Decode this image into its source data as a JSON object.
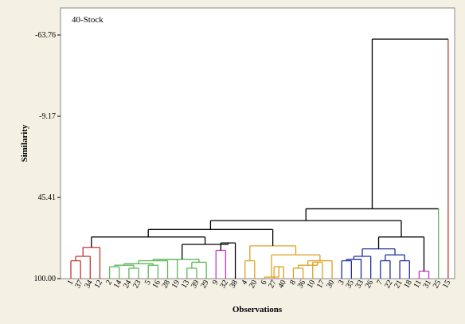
{
  "chart_data": {
    "type": "dendrogram",
    "title": "40-Stock",
    "xlabel": "Observations",
    "ylabel": "Similarity",
    "ylim": [
      100.0,
      -63.76
    ],
    "yticks": [
      "-63.76",
      "-9.17",
      "45.41",
      "100.00"
    ],
    "ytick_values": [
      -63.76,
      -9.17,
      45.41,
      100.0
    ],
    "leaf_order": [
      "1",
      "37",
      "34",
      "12",
      "2",
      "14",
      "24",
      "23",
      "5",
      "16",
      "28",
      "19",
      "13",
      "39",
      "29",
      "9",
      "32",
      "38",
      "4",
      "20",
      "6",
      "27",
      "40",
      "8",
      "36",
      "10",
      "17",
      "30",
      "3",
      "35",
      "33",
      "26",
      "7",
      "22",
      "21",
      "18",
      "11",
      "31",
      "25",
      "15"
    ],
    "leaf_colors": [
      "#c0392b",
      "#c0392b",
      "#c0392b",
      "#c0392b",
      "#5cb85c",
      "#5cb85c",
      "#5cb85c",
      "#5cb85c",
      "#5cb85c",
      "#5cb85c",
      "#5cb85c",
      "#5cb85c",
      "#5cb85c",
      "#5cb85c",
      "#5cb85c",
      "#cc33cc",
      "#cc33cc",
      "#000000",
      "#e0a020",
      "#e0a020",
      "#e0a020",
      "#e0a020",
      "#e0a020",
      "#e0a020",
      "#e0a020",
      "#e0a020",
      "#e0a020",
      "#e0a020",
      "#1f2ea0",
      "#1f2ea0",
      "#1f2ea0",
      "#1f2ea0",
      "#1f2ea0",
      "#1f2ea0",
      "#1f2ea0",
      "#1f2ea0",
      "#cc33cc",
      "#cc33cc",
      "#5cb85c",
      "#c0392b"
    ],
    "merges": [
      {
        "a": 0,
        "b": 1,
        "s": 88,
        "c": "#c0392b"
      },
      {
        "a": -1,
        "b": 2,
        "s": 85,
        "c": "#c0392b"
      },
      {
        "a": -2,
        "b": 3,
        "s": 79,
        "c": "#c0392b"
      },
      {
        "a": 4,
        "b": 5,
        "s": 92,
        "c": "#5cb85c"
      },
      {
        "a": 6,
        "b": 7,
        "s": 93,
        "c": "#5cb85c"
      },
      {
        "a": -4,
        "b": -5,
        "s": 91,
        "c": "#5cb85c"
      },
      {
        "a": 8,
        "b": 9,
        "s": 91,
        "c": "#5cb85c"
      },
      {
        "a": -6,
        "b": -7,
        "s": 90,
        "c": "#5cb85c"
      },
      {
        "a": -8,
        "b": 10,
        "s": 88,
        "c": "#5cb85c"
      },
      {
        "a": -9,
        "b": 11,
        "s": 87,
        "c": "#5cb85c"
      },
      {
        "a": 12,
        "b": 13,
        "s": 93,
        "c": "#5cb85c"
      },
      {
        "a": -11,
        "b": 14,
        "s": 89,
        "c": "#5cb85c"
      },
      {
        "a": -10,
        "b": -12,
        "s": 87,
        "c": "#5cb85c"
      },
      {
        "a": 15,
        "b": 16,
        "s": 81,
        "c": "#cc33cc"
      },
      {
        "a": -14,
        "b": 17,
        "s": 76,
        "c": "#000000"
      },
      {
        "a": 18,
        "b": 19,
        "s": 88,
        "c": "#e0a020"
      },
      {
        "a": 21,
        "b": 22,
        "s": 92,
        "c": "#e0a020"
      },
      {
        "a": 20,
        "b": -17,
        "s": 99,
        "c": "#e0a020"
      },
      {
        "a": 23,
        "b": 24,
        "s": 93,
        "c": "#e0a020"
      },
      {
        "a": 25,
        "b": 26,
        "s": 89,
        "c": "#e0a020"
      },
      {
        "a": -19,
        "b": -20,
        "s": 91,
        "c": "#e0a020"
      },
      {
        "a": -21,
        "b": 27,
        "s": 88,
        "c": "#e0a020"
      },
      {
        "a": -18,
        "b": -22,
        "s": 84,
        "c": "#e0a020"
      },
      {
        "a": -16,
        "b": -23,
        "s": 78,
        "c": "#e0a020"
      },
      {
        "a": 28,
        "b": 29,
        "s": 88,
        "c": "#1f2ea0"
      },
      {
        "a": -25,
        "b": 30,
        "s": 87,
        "c": "#1f2ea0"
      },
      {
        "a": -26,
        "b": 31,
        "s": 85,
        "c": "#1f2ea0"
      },
      {
        "a": 32,
        "b": 33,
        "s": 88,
        "c": "#1f2ea0"
      },
      {
        "a": 34,
        "b": 35,
        "s": 88,
        "c": "#1f2ea0"
      },
      {
        "a": -28,
        "b": -29,
        "s": 84,
        "c": "#1f2ea0"
      },
      {
        "a": -27,
        "b": -30,
        "s": 80,
        "c": "#1f2ea0"
      },
      {
        "a": 36,
        "b": 37,
        "s": 95,
        "c": "#cc33cc"
      },
      {
        "a": -31,
        "b": -32,
        "s": 72,
        "c": "#000000"
      },
      {
        "a": -13,
        "b": -15,
        "s": 77,
        "c": "#000000"
      },
      {
        "a": -3,
        "b": -34,
        "s": 72,
        "c": "#000000"
      },
      {
        "a": -35,
        "b": -24,
        "s": 67,
        "c": "#000000"
      },
      {
        "a": -36,
        "b": -33,
        "s": 61,
        "c": "#000000"
      },
      {
        "a": -37,
        "b": 38,
        "s": 53,
        "c": "#000000"
      },
      {
        "a": -38,
        "b": 39,
        "s": -61,
        "c": "#000000"
      }
    ],
    "special_colors": {
      "final_right": "#c0392b",
      "node25_link": "#5cb85c"
    }
  }
}
